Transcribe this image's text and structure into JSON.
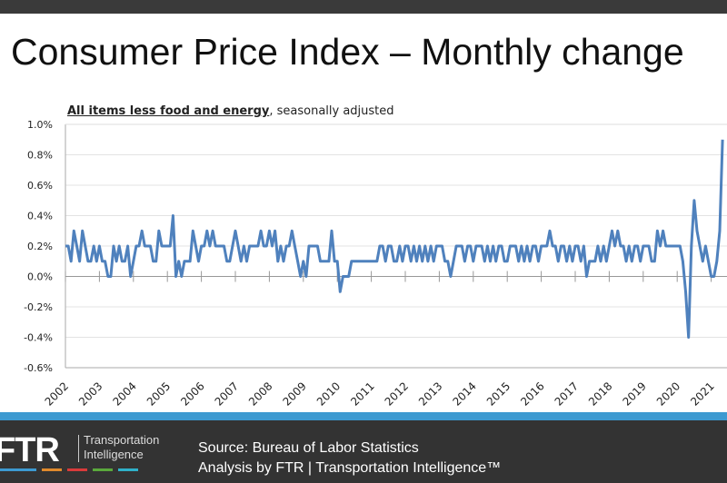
{
  "header": {
    "title": "Consumer Price Index – Monthly change"
  },
  "footer": {
    "logo_text": "FTR",
    "logo_tagline_1": "Transportation",
    "logo_tagline_2": "Intelligence",
    "source": "Source: Bureau of Labor Statistics",
    "analysis": "Analysis by FTR | Transportation Intelligence™",
    "logo_bar_colors": [
      "#3d9ad1",
      "#e08a2c",
      "#d93b3b",
      "#5aa83c",
      "#2fb1c9"
    ]
  },
  "colors": {
    "line": "#4f81bd",
    "grid": "#e3e3e3",
    "footer": "#333333",
    "stripe": "#3d9ad1"
  },
  "chart_data": {
    "type": "line",
    "title": "",
    "subtitle_bold": "All items less food and energy",
    "subtitle_rest": ", seasonally adjusted",
    "xlabel": "",
    "ylabel": "",
    "x_start": "2002-01",
    "x_frequency": "monthly",
    "x_tick_labels": [
      "2002",
      "2003",
      "2004",
      "2005",
      "2006",
      "2007",
      "2008",
      "2009",
      "2010",
      "2011",
      "2012",
      "2013",
      "2014",
      "2015",
      "2016",
      "2017",
      "2018",
      "2019",
      "2020",
      "2021"
    ],
    "y_tick_labels": [
      "1.0%",
      "0.8%",
      "0.6%",
      "0.4%",
      "0.2%",
      "0.0%",
      "-0.2%",
      "-0.4%",
      "-0.6%"
    ],
    "ylim": [
      -0.6,
      1.0
    ],
    "grid": true,
    "series": [
      {
        "values": [
          0.2,
          0.2,
          0.1,
          0.3,
          0.2,
          0.1,
          0.3,
          0.2,
          0.1,
          0.1,
          0.2,
          0.1,
          0.2,
          0.1,
          0.1,
          0.0,
          0.0,
          0.2,
          0.1,
          0.2,
          0.1,
          0.1,
          0.2,
          0.0,
          0.1,
          0.2,
          0.2,
          0.3,
          0.2,
          0.2,
          0.2,
          0.1,
          0.1,
          0.3,
          0.2,
          0.2,
          0.2,
          0.2,
          0.4,
          0.0,
          0.1,
          0.0,
          0.1,
          0.1,
          0.1,
          0.3,
          0.2,
          0.1,
          0.2,
          0.2,
          0.3,
          0.2,
          0.3,
          0.2,
          0.2,
          0.2,
          0.2,
          0.1,
          0.1,
          0.2,
          0.3,
          0.2,
          0.1,
          0.2,
          0.1,
          0.2,
          0.2,
          0.2,
          0.2,
          0.3,
          0.2,
          0.2,
          0.3,
          0.2,
          0.3,
          0.1,
          0.2,
          0.1,
          0.2,
          0.2,
          0.3,
          0.2,
          0.1,
          0.0,
          0.1,
          0.0,
          0.2,
          0.2,
          0.2,
          0.2,
          0.1,
          0.1,
          0.1,
          0.1,
          0.3,
          0.1,
          0.1,
          -0.1,
          0.0,
          0.0,
          0.0,
          0.1,
          0.1,
          0.1,
          0.1,
          0.1,
          0.1,
          0.1,
          0.1,
          0.1,
          0.1,
          0.2,
          0.2,
          0.1,
          0.2,
          0.2,
          0.1,
          0.1,
          0.2,
          0.1,
          0.2,
          0.2,
          0.1,
          0.2,
          0.1,
          0.2,
          0.1,
          0.2,
          0.1,
          0.2,
          0.1,
          0.2,
          0.2,
          0.2,
          0.1,
          0.1,
          0.0,
          0.1,
          0.2,
          0.2,
          0.2,
          0.1,
          0.2,
          0.2,
          0.1,
          0.2,
          0.2,
          0.2,
          0.1,
          0.2,
          0.1,
          0.2,
          0.1,
          0.2,
          0.2,
          0.1,
          0.1,
          0.2,
          0.2,
          0.2,
          0.1,
          0.2,
          0.1,
          0.2,
          0.1,
          0.2,
          0.2,
          0.1,
          0.2,
          0.2,
          0.2,
          0.3,
          0.2,
          0.2,
          0.1,
          0.2,
          0.2,
          0.1,
          0.2,
          0.1,
          0.2,
          0.2,
          0.1,
          0.2,
          0.0,
          0.1,
          0.1,
          0.1,
          0.2,
          0.1,
          0.2,
          0.1,
          0.2,
          0.3,
          0.2,
          0.3,
          0.2,
          0.2,
          0.1,
          0.2,
          0.1,
          0.2,
          0.2,
          0.1,
          0.2,
          0.2,
          0.2,
          0.1,
          0.1,
          0.3,
          0.2,
          0.3,
          0.2,
          0.2,
          0.2,
          0.2,
          0.2,
          0.2,
          0.1,
          -0.1,
          -0.4,
          0.2,
          0.5,
          0.3,
          0.2,
          0.1,
          0.2,
          0.1,
          0.0,
          0.0,
          0.1,
          0.3,
          0.9
        ]
      }
    ]
  }
}
